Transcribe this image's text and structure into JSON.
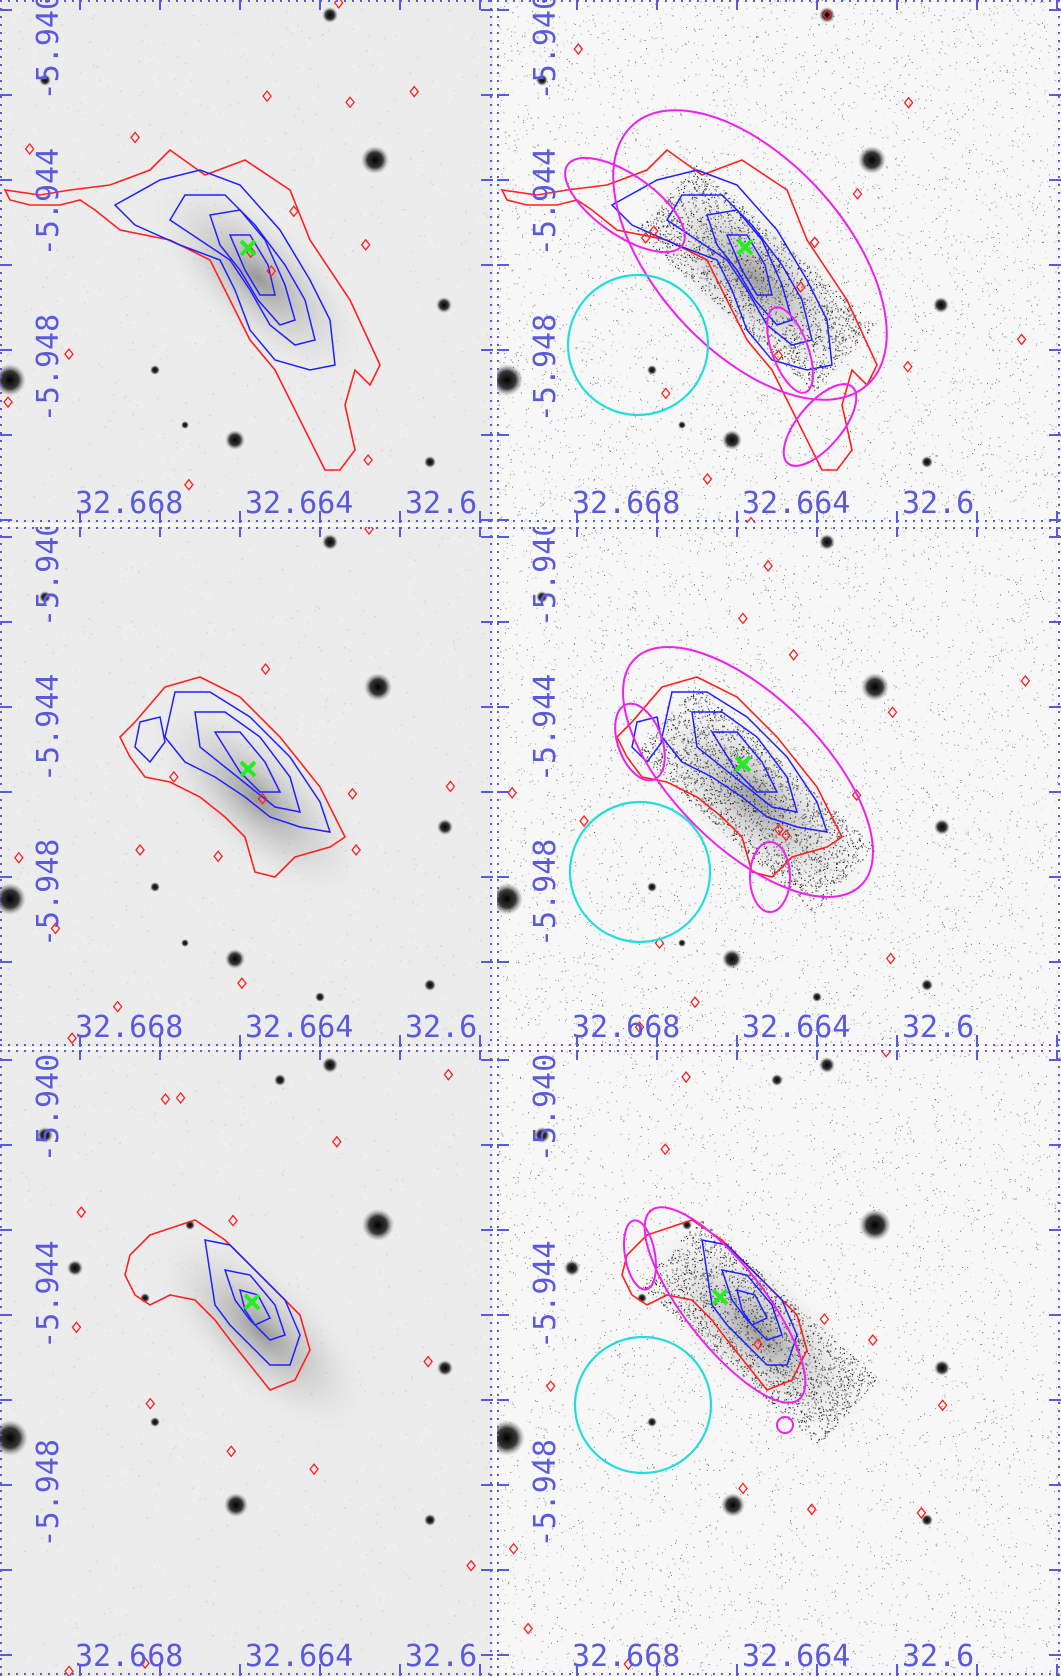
{
  "figure": {
    "panels": [
      {
        "row": 1,
        "col": 1,
        "style": "smooth-grey",
        "has_ellipses": false
      },
      {
        "row": 1,
        "col": 2,
        "style": "residual-grainy",
        "has_ellipses": true
      },
      {
        "row": 2,
        "col": 1,
        "style": "smooth-grey",
        "has_ellipses": false
      },
      {
        "row": 2,
        "col": 2,
        "style": "residual-grainy",
        "has_ellipses": true
      },
      {
        "row": 3,
        "col": 1,
        "style": "smooth-grey",
        "has_ellipses": false
      },
      {
        "row": 3,
        "col": 2,
        "style": "residual-grainy",
        "has_ellipses": true
      }
    ],
    "x_tick_labels": [
      "32.668",
      "32.664",
      "32.6"
    ],
    "y_tick_labels": [
      "-5.940",
      "-5.944",
      "-5.948"
    ],
    "colors": {
      "axis": "#5a5adc",
      "contour_outer": "#ff2020",
      "contour_inner": "#2020ff",
      "center_marker": "#22ee22",
      "ellipse": "#ee22ee",
      "background_region": "#22dddd"
    },
    "icons": {
      "center_marker": "green-x-icon"
    }
  }
}
